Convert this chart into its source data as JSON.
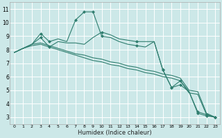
{
  "xlabel": "Humidex (Indice chaleur)",
  "bg_color": "#cce8e8",
  "line_color": "#2e7d6e",
  "grid_color": "#b8d8d8",
  "xlim": [
    -0.5,
    23.5
  ],
  "ylim": [
    2.5,
    11.5
  ],
  "xticks": [
    0,
    1,
    2,
    3,
    4,
    5,
    6,
    7,
    8,
    9,
    10,
    11,
    12,
    13,
    14,
    15,
    16,
    17,
    18,
    19,
    20,
    21,
    22,
    23
  ],
  "yticks": [
    3,
    4,
    5,
    6,
    7,
    8,
    9,
    10,
    11
  ],
  "lines": [
    {
      "x": [
        0,
        1,
        2,
        3,
        4,
        5,
        6,
        7,
        8,
        9,
        10,
        11,
        12,
        13,
        14,
        15,
        16,
        17,
        18,
        19,
        20,
        21,
        22,
        23
      ],
      "y": [
        7.8,
        8.1,
        8.4,
        9.2,
        8.6,
        8.8,
        8.6,
        10.2,
        10.8,
        10.8,
        9.0,
        8.9,
        8.6,
        8.4,
        8.3,
        8.2,
        8.6,
        6.5,
        5.2,
        5.4,
        4.9,
        3.3,
        3.1,
        3.0
      ],
      "marker_x": [
        3,
        4,
        7,
        8,
        9,
        10,
        14,
        17,
        18,
        19,
        21,
        22,
        23
      ],
      "marker_y": [
        9.2,
        8.6,
        10.2,
        10.8,
        10.8,
        9.0,
        8.3,
        6.5,
        5.2,
        5.4,
        3.3,
        3.1,
        3.0
      ]
    },
    {
      "x": [
        0,
        1,
        2,
        3,
        4,
        5,
        6,
        7,
        8,
        9,
        10,
        11,
        12,
        13,
        14,
        15,
        16,
        17,
        18,
        19,
        20,
        21,
        22,
        23
      ],
      "y": [
        7.8,
        8.1,
        8.4,
        8.9,
        8.2,
        8.6,
        8.5,
        8.5,
        8.4,
        8.9,
        9.3,
        9.1,
        8.8,
        8.7,
        8.6,
        8.6,
        8.6,
        6.5,
        5.2,
        5.7,
        4.9,
        3.4,
        3.2,
        3.0
      ],
      "marker_x": [
        3,
        4,
        10,
        14,
        17,
        18,
        19,
        21,
        22,
        23
      ],
      "marker_y": [
        8.9,
        8.2,
        9.3,
        8.6,
        6.5,
        5.2,
        5.7,
        3.4,
        3.2,
        3.0
      ]
    },
    {
      "x": [
        0,
        1,
        2,
        3,
        4,
        5,
        6,
        7,
        8,
        9,
        10,
        11,
        12,
        13,
        14,
        15,
        16,
        17,
        18,
        19,
        20,
        21,
        22,
        23
      ],
      "y": [
        7.8,
        8.1,
        8.4,
        8.5,
        8.3,
        8.1,
        7.9,
        7.7,
        7.6,
        7.4,
        7.3,
        7.1,
        7.0,
        6.8,
        6.7,
        6.5,
        6.4,
        6.2,
        6.1,
        5.9,
        5.0,
        4.9,
        3.3,
        3.0
      ],
      "marker_x": [],
      "marker_y": []
    },
    {
      "x": [
        0,
        1,
        2,
        3,
        4,
        5,
        6,
        7,
        8,
        9,
        10,
        11,
        12,
        13,
        14,
        15,
        16,
        17,
        18,
        19,
        20,
        21,
        22,
        23
      ],
      "y": [
        7.8,
        8.1,
        8.3,
        8.4,
        8.2,
        8.0,
        7.8,
        7.6,
        7.4,
        7.2,
        7.1,
        6.9,
        6.8,
        6.6,
        6.5,
        6.3,
        6.2,
        6.0,
        5.9,
        5.7,
        4.8,
        4.7,
        3.2,
        3.0
      ],
      "marker_x": [],
      "marker_y": []
    }
  ]
}
